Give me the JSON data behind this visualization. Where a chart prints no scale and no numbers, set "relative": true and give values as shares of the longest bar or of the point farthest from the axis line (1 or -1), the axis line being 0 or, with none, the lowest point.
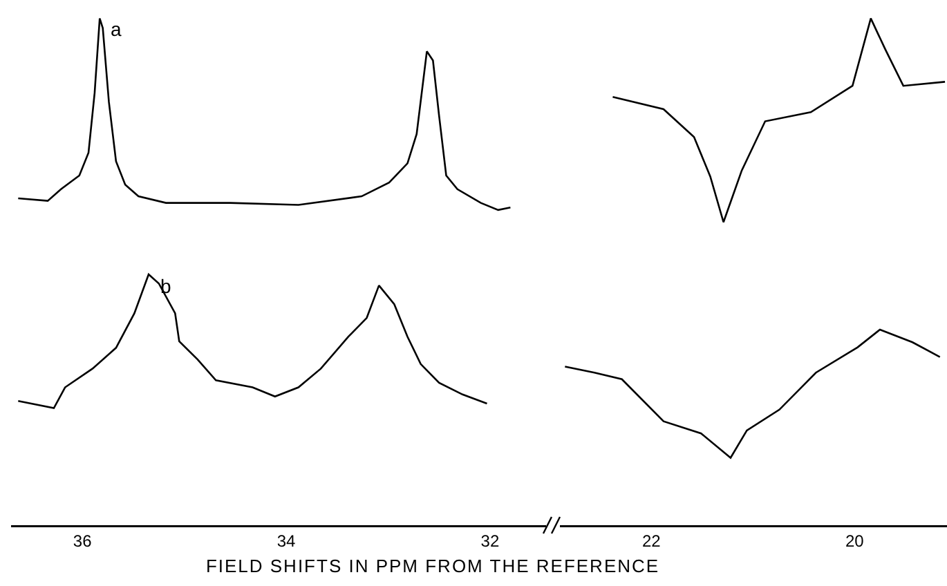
{
  "chart_data": [
    {
      "type": "line",
      "relative": true,
      "xlabel": "FIELD SHIFTS IN PPM FROM THE REFERENCE",
      "xlim": [
        36.7,
        31.45
      ],
      "xticks": [
        36,
        34,
        32
      ],
      "grid": false,
      "legend": false,
      "marker": "none",
      "line_style": "solid",
      "series": [
        {
          "name": "a",
          "color": "#000000",
          "x": [
            36.63,
            36.34,
            36.21,
            36.03,
            35.94,
            35.88,
            35.83,
            35.8,
            35.74,
            35.67,
            35.58,
            35.45,
            35.18,
            34.55,
            33.88,
            33.26,
            32.99,
            32.81,
            32.72,
            32.62,
            32.56,
            32.5,
            32.43,
            32.32,
            32.09,
            31.92,
            31.8
          ],
          "values": [
            0.645,
            0.64,
            0.663,
            0.69,
            0.735,
            0.853,
            1,
            0.981,
            0.835,
            0.718,
            0.672,
            0.649,
            0.636,
            0.636,
            0.632,
            0.649,
            0.676,
            0.714,
            0.772,
            0.935,
            0.917,
            0.808,
            0.69,
            0.663,
            0.636,
            0.622,
            0.627
          ]
        },
        {
          "name": "b",
          "color": "#000000",
          "x": [
            36.63,
            36.28,
            36.17,
            35.9,
            35.67,
            35.49,
            35.35,
            35.25,
            35.09,
            35.05,
            34.87,
            34.69,
            34.33,
            34.11,
            33.88,
            33.66,
            33.39,
            33.21,
            33.09,
            32.94,
            32.81,
            32.68,
            32.5,
            32.27,
            32.03
          ],
          "values": [
            0.245,
            0.231,
            0.272,
            0.309,
            0.35,
            0.418,
            0.495,
            0.477,
            0.418,
            0.363,
            0.327,
            0.286,
            0.272,
            0.254,
            0.272,
            0.309,
            0.372,
            0.409,
            0.473,
            0.436,
            0.372,
            0.318,
            0.281,
            0.258,
            0.24
          ]
        }
      ]
    },
    {
      "type": "line",
      "relative": true,
      "xlim": [
        22.9,
        19.09
      ],
      "xticks": [
        22,
        20
      ],
      "grid": false,
      "legend": false,
      "marker": "none",
      "line_style": "solid",
      "series": [
        {
          "color": "#000000",
          "x": [
            22.38,
            21.88,
            21.58,
            21.42,
            21.29,
            21.11,
            20.88,
            20.43,
            20.02,
            19.84,
            19.7,
            19.52,
            19.11
          ],
          "values": [
            0.845,
            0.821,
            0.766,
            0.688,
            0.598,
            0.7,
            0.797,
            0.815,
            0.867,
            1,
            0.94,
            0.867,
            0.875
          ]
        },
        {
          "color": "#000000",
          "x": [
            22.85,
            22.56,
            22.29,
            21.88,
            21.51,
            21.22,
            21.06,
            20.74,
            20.38,
            19.97,
            19.75,
            19.43,
            19.16
          ],
          "values": [
            0.313,
            0.301,
            0.288,
            0.205,
            0.181,
            0.133,
            0.187,
            0.228,
            0.301,
            0.351,
            0.386,
            0.361,
            0.332
          ]
        }
      ]
    }
  ]
}
